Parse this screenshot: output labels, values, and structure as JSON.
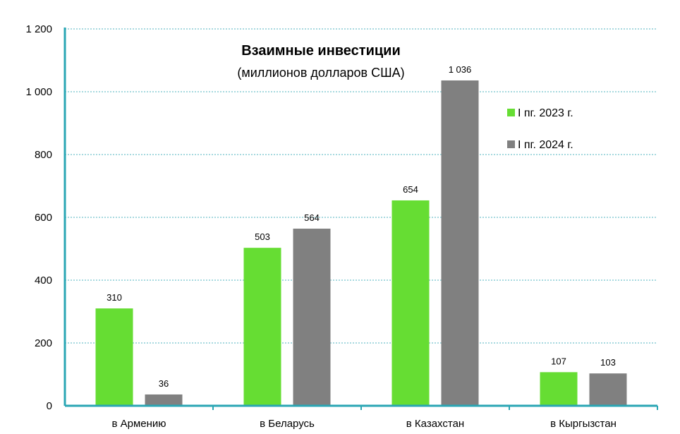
{
  "chart_data": {
    "type": "bar",
    "title": "Взаимные инвестиции",
    "subtitle": "(миллионов долларов США)",
    "categories": [
      "в Армению",
      "в Беларусь",
      "в Казахстан",
      "в Кыргызстан"
    ],
    "series": [
      {
        "name": "I пг. 2023 г.",
        "values": [
          310,
          503,
          654,
          107
        ],
        "labels": [
          "310",
          "503",
          "654",
          "107"
        ],
        "color": "#66dd33"
      },
      {
        "name": "I пг. 2024 г.",
        "values": [
          36,
          564,
          1036,
          103
        ],
        "labels": [
          "36",
          "564",
          "1 036",
          "103"
        ],
        "color": "#808080"
      }
    ],
    "ylim": [
      0,
      1200
    ],
    "yticks": [
      0,
      200,
      400,
      600,
      800,
      1000,
      1200
    ],
    "ytick_labels": [
      "0",
      "200",
      "400",
      "600",
      "800",
      "1 000",
      "1 200"
    ],
    "grid": true,
    "gridline_color": "#4fb3bf",
    "axis_color": "#2aa6b4",
    "legend_position": "top-right",
    "xlabel": "",
    "ylabel": ""
  }
}
